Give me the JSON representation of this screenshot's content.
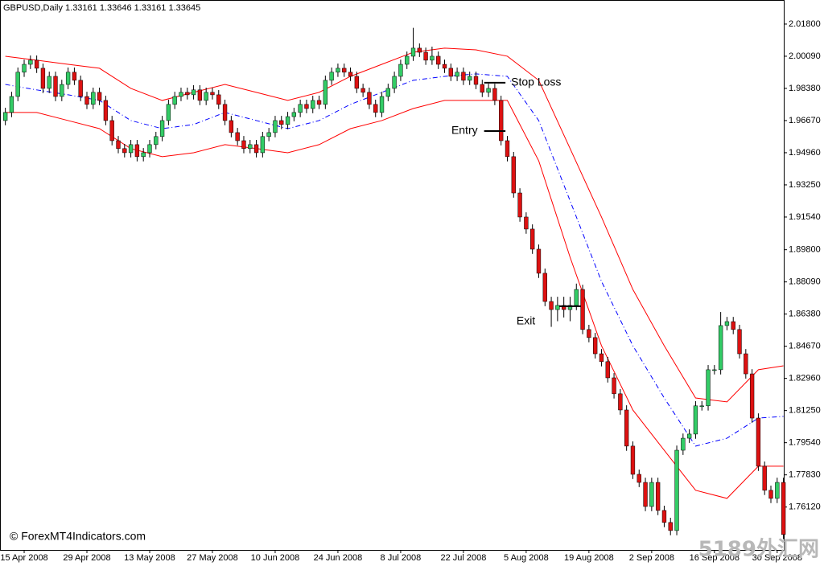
{
  "chart_data": {
    "type": "candlestick",
    "title": "GBPUSD,Daily  1.33161 1.33646 1.33161 1.33645",
    "copyright": "© ForexMT4Indicators.com",
    "watermark": "5189外汇网",
    "up_color": "#33cc66",
    "down_color": "#dd1111",
    "wick_color": "#000000",
    "ylim": [
      1.7384,
      2.0308
    ],
    "xlim": [
      -0.85,
      124.05
    ],
    "yticks": [
      {
        "value": 2.018,
        "label": "2.01800"
      },
      {
        "value": 2.0009,
        "label": "2.00090"
      },
      {
        "value": 1.9838,
        "label": "1.98380"
      },
      {
        "value": 1.9667,
        "label": "1.96670"
      },
      {
        "value": 1.9496,
        "label": "1.94960"
      },
      {
        "value": 1.9325,
        "label": "1.93250"
      },
      {
        "value": 1.9154,
        "label": "1.91540"
      },
      {
        "value": 1.898,
        "label": "1.89800"
      },
      {
        "value": 1.8809,
        "label": "1.88090"
      },
      {
        "value": 1.8638,
        "label": "1.86380"
      },
      {
        "value": 1.8467,
        "label": "1.84670"
      },
      {
        "value": 1.8296,
        "label": "1.82960"
      },
      {
        "value": 1.8125,
        "label": "1.81250"
      },
      {
        "value": 1.7954,
        "label": "1.79540"
      },
      {
        "value": 1.7783,
        "label": "1.77830"
      },
      {
        "value": 1.7612,
        "label": "1.76120"
      }
    ],
    "xticks": [
      {
        "value": 3,
        "label": "15 Apr 2008"
      },
      {
        "value": 13,
        "label": "29 Apr 2008"
      },
      {
        "value": 23,
        "label": "13 May 2008"
      },
      {
        "value": 33,
        "label": "27 May 2008"
      },
      {
        "value": 43,
        "label": "10 Jun 2008"
      },
      {
        "value": 53,
        "label": "24 Jun 2008"
      },
      {
        "value": 63,
        "label": "8 Jul 2008"
      },
      {
        "value": 73,
        "label": "22 Jul 2008"
      },
      {
        "value": 83,
        "label": "5 Aug 2008"
      },
      {
        "value": 93,
        "label": "19 Aug 2008"
      },
      {
        "value": 103,
        "label": "2 Sep 2008"
      },
      {
        "value": 113,
        "label": "16 Sep 2008"
      },
      {
        "value": 123,
        "label": "30 Sep 2008"
      }
    ],
    "candles": [
      [
        1.9667,
        1.9735,
        1.9642,
        1.971
      ],
      [
        1.971,
        1.982,
        1.9685,
        1.9795
      ],
      [
        1.9795,
        1.9949,
        1.977,
        1.9924
      ],
      [
        1.9924,
        1.9991,
        1.9899,
        1.9966
      ],
      [
        1.9966,
        2.0013,
        1.9941,
        1.9988
      ],
      [
        1.9988,
        2.0013,
        1.992,
        1.9945
      ],
      [
        1.9945,
        1.997,
        1.9813,
        1.9838
      ],
      [
        1.9838,
        1.9927,
        1.9813,
        1.9902
      ],
      [
        1.9902,
        1.9927,
        1.977,
        1.9795
      ],
      [
        1.9795,
        1.9884,
        1.977,
        1.9859
      ],
      [
        1.9859,
        1.9949,
        1.9834,
        1.9924
      ],
      [
        1.9924,
        1.9949,
        1.9856,
        1.9881
      ],
      [
        1.9881,
        1.9906,
        1.977,
        1.9795
      ],
      [
        1.9795,
        1.982,
        1.9728,
        1.9753
      ],
      [
        1.9753,
        1.9842,
        1.9728,
        1.9817
      ],
      [
        1.9817,
        1.9842,
        1.9749,
        1.9774
      ],
      [
        1.9774,
        1.9799,
        1.9642,
        1.9667
      ],
      [
        1.9667,
        1.9692,
        1.9535,
        1.956
      ],
      [
        1.956,
        1.9585,
        1.9493,
        1.9518
      ],
      [
        1.9518,
        1.9543,
        1.9471,
        1.9496
      ],
      [
        1.9496,
        1.9564,
        1.9471,
        1.9539
      ],
      [
        1.9539,
        1.9564,
        1.945,
        1.9475
      ],
      [
        1.9475,
        1.9521,
        1.945,
        1.9496
      ],
      [
        1.9496,
        1.9564,
        1.9471,
        1.9539
      ],
      [
        1.9539,
        1.9607,
        1.9514,
        1.9582
      ],
      [
        1.9582,
        1.9692,
        1.9557,
        1.9667
      ],
      [
        1.9667,
        1.9778,
        1.9642,
        1.9753
      ],
      [
        1.9753,
        1.982,
        1.9728,
        1.9795
      ],
      [
        1.9795,
        1.9842,
        1.977,
        1.9817
      ],
      [
        1.9817,
        1.9842,
        1.9779,
        1.9804
      ],
      [
        1.9804,
        1.9855,
        1.9779,
        1.983
      ],
      [
        1.983,
        1.9855,
        1.9749,
        1.9774
      ],
      [
        1.9774,
        1.9842,
        1.9749,
        1.9817
      ],
      [
        1.9817,
        1.9842,
        1.9779,
        1.9804
      ],
      [
        1.9804,
        1.9829,
        1.9728,
        1.9753
      ],
      [
        1.9753,
        1.9778,
        1.9642,
        1.9667
      ],
      [
        1.9667,
        1.9692,
        1.9578,
        1.9603
      ],
      [
        1.9603,
        1.9628,
        1.9535,
        1.956
      ],
      [
        1.956,
        1.9585,
        1.9493,
        1.9518
      ],
      [
        1.9518,
        1.9564,
        1.9493,
        1.9539
      ],
      [
        1.9539,
        1.9564,
        1.9471,
        1.9496
      ],
      [
        1.9496,
        1.9607,
        1.9471,
        1.9582
      ],
      [
        1.9582,
        1.9628,
        1.9557,
        1.9603
      ],
      [
        1.9603,
        1.9692,
        1.9578,
        1.9667
      ],
      [
        1.9667,
        1.9692,
        1.9621,
        1.9646
      ],
      [
        1.9646,
        1.9713,
        1.9621,
        1.9688
      ],
      [
        1.9688,
        1.9735,
        1.9663,
        1.971
      ],
      [
        1.971,
        1.9778,
        1.9685,
        1.9753
      ],
      [
        1.9753,
        1.9778,
        1.9706,
        1.9731
      ],
      [
        1.9731,
        1.9799,
        1.9706,
        1.9774
      ],
      [
        1.9774,
        1.9799,
        1.9728,
        1.9753
      ],
      [
        1.9753,
        1.9906,
        1.9728,
        1.9881
      ],
      [
        1.9881,
        1.9949,
        1.9856,
        1.9924
      ],
      [
        1.9924,
        1.997,
        1.9899,
        1.9945
      ],
      [
        1.9945,
        1.997,
        1.9899,
        1.9924
      ],
      [
        1.9924,
        1.9949,
        1.9877,
        1.9902
      ],
      [
        1.9902,
        1.9927,
        1.9813,
        1.9838
      ],
      [
        1.9838,
        1.9863,
        1.9792,
        1.9817
      ],
      [
        1.9817,
        1.9842,
        1.9728,
        1.9753
      ],
      [
        1.9753,
        1.9778,
        1.9685,
        1.971
      ],
      [
        1.971,
        1.982,
        1.9685,
        1.9795
      ],
      [
        1.9795,
        1.9863,
        1.977,
        1.9838
      ],
      [
        1.9838,
        1.9927,
        1.9813,
        1.9902
      ],
      [
        1.9902,
        1.9991,
        1.9877,
        1.9966
      ],
      [
        1.9966,
        2.0034,
        1.9941,
        2.0009
      ],
      [
        2.0009,
        2.016,
        1.9984,
        2.0052
      ],
      [
        2.0052,
        2.0077,
        2.0005,
        2.003
      ],
      [
        2.003,
        2.0055,
        1.9963,
        1.9988
      ],
      [
        1.9988,
        2.006,
        1.9963,
        2.0009
      ],
      [
        2.0009,
        2.0034,
        1.9941,
        1.9966
      ],
      [
        1.9966,
        1.9991,
        1.992,
        1.9945
      ],
      [
        1.9945,
        1.997,
        1.9877,
        1.9902
      ],
      [
        1.9902,
        1.9949,
        1.9877,
        1.9924
      ],
      [
        1.9924,
        1.9949,
        1.9856,
        1.9881
      ],
      [
        1.9881,
        1.9927,
        1.9856,
        1.9902
      ],
      [
        1.9902,
        1.9927,
        1.9834,
        1.9859
      ],
      [
        1.9859,
        1.9884,
        1.9792,
        1.9817
      ],
      [
        1.9817,
        1.9863,
        1.9792,
        1.9838
      ],
      [
        1.9838,
        1.9863,
        1.9749,
        1.9774
      ],
      [
        1.9774,
        1.9799,
        1.9535,
        1.956
      ],
      [
        1.956,
        1.9585,
        1.945,
        1.9475
      ],
      [
        1.9475,
        1.95,
        1.9257,
        1.9282
      ],
      [
        1.9282,
        1.9307,
        1.9129,
        1.9154
      ],
      [
        1.9154,
        1.9179,
        1.9065,
        1.909
      ],
      [
        1.909,
        1.9115,
        1.8958,
        1.8983
      ],
      [
        1.8983,
        1.9008,
        1.883,
        1.8855
      ],
      [
        1.8855,
        1.888,
        1.868,
        1.8705
      ],
      [
        1.8705,
        1.873,
        1.857,
        1.8662
      ],
      [
        1.8662,
        1.873,
        1.86,
        1.8684
      ],
      [
        1.8684,
        1.873,
        1.862,
        1.8662
      ],
      [
        1.8662,
        1.873,
        1.86,
        1.8684
      ],
      [
        1.8684,
        1.88,
        1.8659,
        1.8769
      ],
      [
        1.8769,
        1.8794,
        1.8531,
        1.8556
      ],
      [
        1.8556,
        1.8581,
        1.8488,
        1.8513
      ],
      [
        1.8513,
        1.8538,
        1.8402,
        1.8427
      ],
      [
        1.8427,
        1.8452,
        1.836,
        1.8385
      ],
      [
        1.8385,
        1.841,
        1.8274,
        1.8299
      ],
      [
        1.8299,
        1.8324,
        1.8189,
        1.8214
      ],
      [
        1.8214,
        1.8239,
        1.8103,
        1.8128
      ],
      [
        1.8128,
        1.8153,
        1.7911,
        1.7936
      ],
      [
        1.7936,
        1.7961,
        1.7761,
        1.7786
      ],
      [
        1.7786,
        1.7811,
        1.7718,
        1.7743
      ],
      [
        1.7743,
        1.7768,
        1.759,
        1.7615
      ],
      [
        1.7615,
        1.7768,
        1.759,
        1.7743
      ],
      [
        1.7743,
        1.7768,
        1.7569,
        1.7594
      ],
      [
        1.7594,
        1.7619,
        1.7505,
        1.753
      ],
      [
        1.753,
        1.7555,
        1.7462,
        1.7487
      ],
      [
        1.7487,
        1.7939,
        1.7462,
        1.7914
      ],
      [
        1.7914,
        1.8003,
        1.7889,
        1.7978
      ],
      [
        1.7978,
        1.8025,
        1.7953,
        1.8
      ],
      [
        1.8,
        1.8175,
        1.7975,
        1.815
      ],
      [
        1.815,
        1.8175,
        1.8125,
        1.815
      ],
      [
        1.815,
        1.8367,
        1.8125,
        1.8342
      ],
      [
        1.8342,
        1.8367,
        1.8317,
        1.8342
      ],
      [
        1.8342,
        1.8649,
        1.8317,
        1.8577
      ],
      [
        1.8577,
        1.8623,
        1.8552,
        1.8598
      ],
      [
        1.8598,
        1.8623,
        1.8531,
        1.8556
      ],
      [
        1.8556,
        1.8581,
        1.8402,
        1.8427
      ],
      [
        1.8427,
        1.8452,
        1.8295,
        1.832
      ],
      [
        1.832,
        1.8345,
        1.806,
        1.8085
      ],
      [
        1.8085,
        1.811,
        1.7804,
        1.7829
      ],
      [
        1.7829,
        1.7854,
        1.7676,
        1.7701
      ],
      [
        1.7701,
        1.7726,
        1.7633,
        1.7658
      ],
      [
        1.7658,
        1.7768,
        1.7633,
        1.7743
      ],
      [
        1.7743,
        1.7768,
        1.7441,
        1.7466
      ]
    ],
    "band_x": [
      0,
      5,
      10,
      15,
      20,
      25,
      30,
      35,
      40,
      45,
      50,
      55,
      60,
      65,
      70,
      75,
      80,
      85,
      90,
      95,
      100,
      105,
      110,
      115,
      120,
      124
    ],
    "bands": [
      {
        "color": "#ff0000",
        "dash": false,
        "values": [
          2.0009,
          1.9988,
          1.9966,
          1.9945,
          1.9838,
          1.9774,
          1.9817,
          1.9859,
          1.9817,
          1.9774,
          1.9817,
          1.9902,
          1.9966,
          2.003,
          2.0052,
          2.0043,
          2.0009,
          1.9881,
          1.9518,
          1.9154,
          1.8769,
          1.847,
          1.8192,
          1.8171,
          1.8342,
          1.8363
        ]
      },
      {
        "color": "#0000ff",
        "dash": true,
        "values": [
          1.9859,
          1.983,
          1.9804,
          1.9774,
          1.9667,
          1.9624,
          1.9646,
          1.971,
          1.9667,
          1.9624,
          1.9667,
          1.9753,
          1.9817,
          1.9881,
          1.9902,
          1.9915,
          1.9902,
          1.9667,
          1.924,
          1.8812,
          1.847,
          1.8192,
          1.7936,
          1.7978,
          1.8085,
          1.8094
        ]
      },
      {
        "color": "#ff0000",
        "dash": false,
        "values": [
          1.971,
          1.971,
          1.9667,
          1.9624,
          1.9518,
          1.9475,
          1.9496,
          1.9539,
          1.9518,
          1.9496,
          1.9539,
          1.9624,
          1.9667,
          1.9731,
          1.9774,
          1.9774,
          1.9774,
          1.9453,
          1.894,
          1.847,
          1.8128,
          1.7914,
          1.7701,
          1.7658,
          1.7829,
          1.7829
        ]
      }
    ],
    "annotations": [
      {
        "text": "Stop Loss",
        "value": 1.9868,
        "x": 78
      },
      {
        "text": "Entry",
        "value": 1.9611,
        "x": 78
      },
      {
        "text": "Exit",
        "value": 1.868,
        "x": 90
      }
    ]
  }
}
